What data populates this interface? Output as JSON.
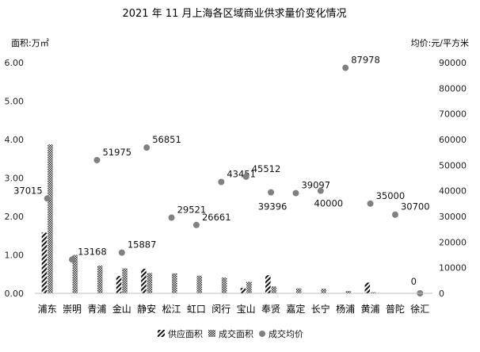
{
  "chart_data": {
    "type": "bar",
    "title": "2021 年 11 月上海各区域商业供求量价变化情况",
    "left_axis_unit": "面积:万㎡",
    "right_axis_unit": "均价:元/平方米",
    "categories": [
      "浦东",
      "崇明",
      "青浦",
      "金山",
      "静安",
      "松江",
      "虹口",
      "闵行",
      "宝山",
      "奉贤",
      "嘉定",
      "长宁",
      "杨浦",
      "黄浦",
      "普陀",
      "徐汇"
    ],
    "left_axis": {
      "min": 0,
      "max": 6,
      "ticks": [
        "0.00",
        "1.00",
        "2.00",
        "3.00",
        "4.00",
        "5.00",
        "6.00"
      ]
    },
    "right_axis": {
      "min": 0,
      "max": 90000,
      "ticks": [
        "0",
        "10000",
        "20000",
        "30000",
        "40000",
        "50000",
        "60000",
        "70000",
        "80000",
        "90000"
      ]
    },
    "series": [
      {
        "name": "供应面积",
        "kind": "bar",
        "axis": "left",
        "pattern": "diagonal",
        "values": [
          1.58,
          0,
          0,
          0.45,
          0.64,
          0,
          0,
          0,
          0.14,
          0.47,
          0,
          0,
          0,
          0.28,
          0,
          0
        ]
      },
      {
        "name": "成交面积",
        "kind": "bar",
        "axis": "left",
        "pattern": "checker",
        "values": [
          3.87,
          1.0,
          0.72,
          0.65,
          0.53,
          0.52,
          0.46,
          0.41,
          0.3,
          0.18,
          0.13,
          0.12,
          0.06,
          0.03,
          0,
          0
        ]
      },
      {
        "name": "成交均价",
        "kind": "scatter",
        "axis": "right",
        "values": [
          37015,
          13168,
          51975,
          15887,
          56851,
          29521,
          26661,
          43451,
          45512,
          39396,
          39097,
          40000,
          87978,
          35000,
          30700,
          0
        ],
        "labels": [
          "37015",
          "13168",
          "51975",
          "15887",
          "56851",
          "29521",
          "26661",
          "43451",
          "45512",
          "39396",
          "39097",
          "40000",
          "87978",
          "35000",
          "30700",
          "0"
        ]
      }
    ],
    "grid": false,
    "legend_position": "bottom"
  }
}
